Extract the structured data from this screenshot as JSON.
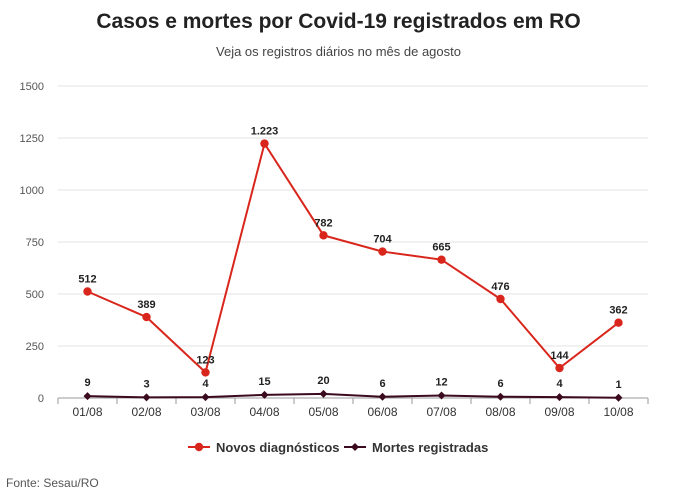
{
  "chart_data": {
    "type": "line",
    "title": "Casos e mortes por Covid-19 registrados em RO",
    "subtitle": "Veja os registros diários no mês de agosto",
    "source": "Fonte: Sesau/RO",
    "categories": [
      "01/08",
      "02/08",
      "03/08",
      "04/08",
      "05/08",
      "06/08",
      "07/08",
      "08/08",
      "09/08",
      "10/08"
    ],
    "y_ticks": [
      "0",
      "250",
      "500",
      "750",
      "1000",
      "1250",
      "1500"
    ],
    "ylim": [
      0,
      1500
    ],
    "grid": true,
    "legend_position": "bottom",
    "series": [
      {
        "name": "Novos diagnósticos",
        "color": "#d9261c",
        "values": [
          512,
          389,
          123,
          1223,
          782,
          704,
          665,
          476,
          144,
          362
        ],
        "labels": [
          "512",
          "389",
          "123",
          "1.223",
          "782",
          "704",
          "665",
          "476",
          "144",
          "362"
        ]
      },
      {
        "name": "Mortes registradas",
        "color": "#3b0a1e",
        "values": [
          9,
          3,
          4,
          15,
          20,
          6,
          12,
          6,
          4,
          1
        ],
        "labels": [
          "9",
          "3",
          "4",
          "15",
          "20",
          "6",
          "12",
          "6",
          "4",
          "1"
        ]
      }
    ]
  }
}
